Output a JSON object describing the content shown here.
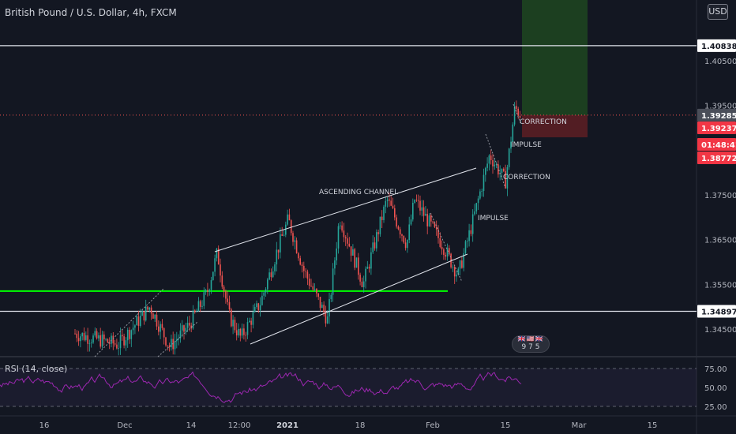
{
  "legend": {
    "title": "British Pound / U.S. Dollar, 4h, FXCM"
  },
  "currency_button": "USD",
  "rsi": {
    "label": "RSI (14, close)"
  },
  "event_badge": {
    "text": "9 7 5",
    "flags": "🇬🇧🇺🇸🇬🇧"
  },
  "colors": {
    "background": "#131722",
    "up_candle": "#26a69a",
    "down_candle": "#ef5350",
    "rsi_line": "#9c27b0",
    "green_level": "#00ff00",
    "profit_zone": "#1e4620",
    "loss_zone": "#5a1e24"
  },
  "price_axis": {
    "ticks": [
      "1.40500",
      "1.39500",
      "1.37500",
      "1.36500",
      "1.35500",
      "1.34500"
    ],
    "tags": [
      {
        "text": "1.40838",
        "style": "white"
      },
      {
        "text": "1.39285",
        "style": "gray"
      },
      {
        "text": "1.39237",
        "style": "red"
      },
      {
        "text": "01:48:41",
        "style": "red"
      },
      {
        "text": "1.38772",
        "style": "red"
      },
      {
        "text": "1.34897",
        "style": "white"
      }
    ]
  },
  "rsi_axis": {
    "ticks": [
      "75.00",
      "50.00",
      "25.00"
    ]
  },
  "time_axis": {
    "ticks": [
      "16",
      "Dec",
      "14",
      "12:00",
      "2021",
      "18",
      "Feb",
      "15",
      "Mar",
      "15"
    ],
    "bold": [
      "2021"
    ]
  },
  "annotations": {
    "ascending_channel": "ASCENDING CHANNEL",
    "impulse_1": "IMPULSE",
    "correction_1": "CORRECTION",
    "impulse_2": "IMPULSE",
    "correction_2": "CORRECTION"
  },
  "levels": {
    "top": "1.40838",
    "current": "1.39285",
    "bottom": "1.34897",
    "green": "1.35350"
  }
}
